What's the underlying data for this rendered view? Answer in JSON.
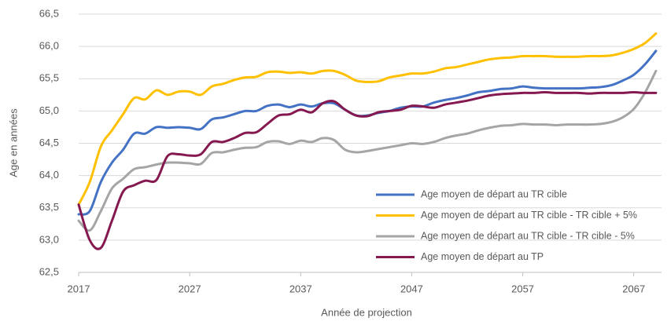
{
  "chart_data": {
    "type": "line",
    "x_label": "Année de projection",
    "y_label": "Age en années",
    "x": [
      2017,
      2018,
      2019,
      2020,
      2021,
      2022,
      2023,
      2024,
      2025,
      2026,
      2027,
      2028,
      2029,
      2030,
      2031,
      2032,
      2033,
      2034,
      2035,
      2036,
      2037,
      2038,
      2039,
      2040,
      2041,
      2042,
      2043,
      2044,
      2045,
      2046,
      2047,
      2048,
      2049,
      2050,
      2051,
      2052,
      2053,
      2054,
      2055,
      2056,
      2057,
      2058,
      2059,
      2060,
      2061,
      2062,
      2063,
      2064,
      2065,
      2066,
      2067,
      2068,
      2069
    ],
    "xlim": [
      2017,
      2069.5
    ],
    "xticks": [
      2017,
      2027,
      2037,
      2047,
      2057,
      2067
    ],
    "ylim": [
      62.5,
      66.5
    ],
    "yticks": [
      {
        "value": 62.5,
        "label": "62,5"
      },
      {
        "value": 63,
        "label": "63,0"
      },
      {
        "value": 63.5,
        "label": "63,5"
      },
      {
        "value": 64,
        "label": "64,0"
      },
      {
        "value": 64.5,
        "label": "64,5"
      },
      {
        "value": 65,
        "label": "65,0"
      },
      {
        "value": 65.5,
        "label": "65,5"
      },
      {
        "value": 66,
        "label": "66,0"
      },
      {
        "value": 66.5,
        "label": "66,5"
      }
    ],
    "grid": true,
    "legend": "lower right",
    "series": [
      {
        "name": "Age moyen de départ au TR cible",
        "color": "#4472c4",
        "values": [
          63.4,
          63.45,
          63.9,
          64.2,
          64.4,
          64.65,
          64.65,
          64.75,
          64.74,
          64.75,
          64.74,
          64.72,
          64.87,
          64.9,
          64.95,
          65.0,
          65.0,
          65.08,
          65.1,
          65.06,
          65.1,
          65.07,
          65.12,
          65.12,
          65.02,
          64.93,
          64.93,
          64.97,
          65.0,
          65.05,
          65.07,
          65.07,
          65.13,
          65.17,
          65.2,
          65.24,
          65.29,
          65.31,
          65.34,
          65.35,
          65.38,
          65.36,
          65.35,
          65.35,
          65.35,
          65.35,
          65.36,
          65.37,
          65.4,
          65.47,
          65.56,
          65.72,
          65.93
        ]
      },
      {
        "name": "Age moyen de départ au TR cible - TR cible + 5%",
        "color": "#ffc000",
        "values": [
          63.55,
          63.9,
          64.45,
          64.7,
          64.95,
          65.2,
          65.18,
          65.32,
          65.25,
          65.3,
          65.3,
          65.25,
          65.38,
          65.42,
          65.48,
          65.52,
          65.53,
          65.6,
          65.61,
          65.59,
          65.6,
          65.58,
          65.62,
          65.62,
          65.56,
          65.47,
          65.45,
          65.46,
          65.52,
          65.55,
          65.58,
          65.58,
          65.61,
          65.66,
          65.68,
          65.72,
          65.76,
          65.8,
          65.82,
          65.83,
          65.85,
          65.85,
          65.85,
          65.84,
          65.84,
          65.84,
          65.85,
          65.85,
          65.86,
          65.9,
          65.96,
          66.05,
          66.2
        ]
      },
      {
        "name": "Age moyen de départ au TR cible - TR cible - 5%",
        "color": "#a5a5a5",
        "values": [
          63.3,
          63.15,
          63.45,
          63.8,
          63.95,
          64.1,
          64.13,
          64.17,
          64.2,
          64.2,
          64.19,
          64.18,
          64.35,
          64.36,
          64.4,
          64.43,
          64.44,
          64.52,
          64.53,
          64.49,
          64.54,
          64.52,
          64.58,
          64.55,
          64.4,
          64.36,
          64.38,
          64.41,
          64.44,
          64.47,
          64.5,
          64.49,
          64.52,
          64.58,
          64.62,
          64.65,
          64.7,
          64.74,
          64.77,
          64.78,
          64.8,
          64.79,
          64.79,
          64.78,
          64.79,
          64.79,
          64.79,
          64.8,
          64.83,
          64.9,
          65.03,
          65.28,
          65.62
        ]
      },
      {
        "name": "Age moyen de départ au TP",
        "color": "#84184f",
        "values": [
          63.55,
          63.0,
          62.88,
          63.3,
          63.75,
          63.85,
          63.92,
          63.93,
          64.3,
          64.33,
          64.31,
          64.33,
          64.52,
          64.52,
          64.58,
          64.66,
          64.67,
          64.8,
          64.93,
          64.95,
          65.02,
          64.98,
          65.12,
          65.15,
          65.02,
          64.93,
          64.92,
          64.98,
          65.0,
          65.02,
          65.08,
          65.07,
          65.05,
          65.1,
          65.13,
          65.16,
          65.2,
          65.24,
          65.26,
          65.27,
          65.28,
          65.28,
          65.29,
          65.28,
          65.28,
          65.28,
          65.27,
          65.28,
          65.28,
          65.28,
          65.29,
          65.28,
          65.28
        ]
      }
    ]
  }
}
